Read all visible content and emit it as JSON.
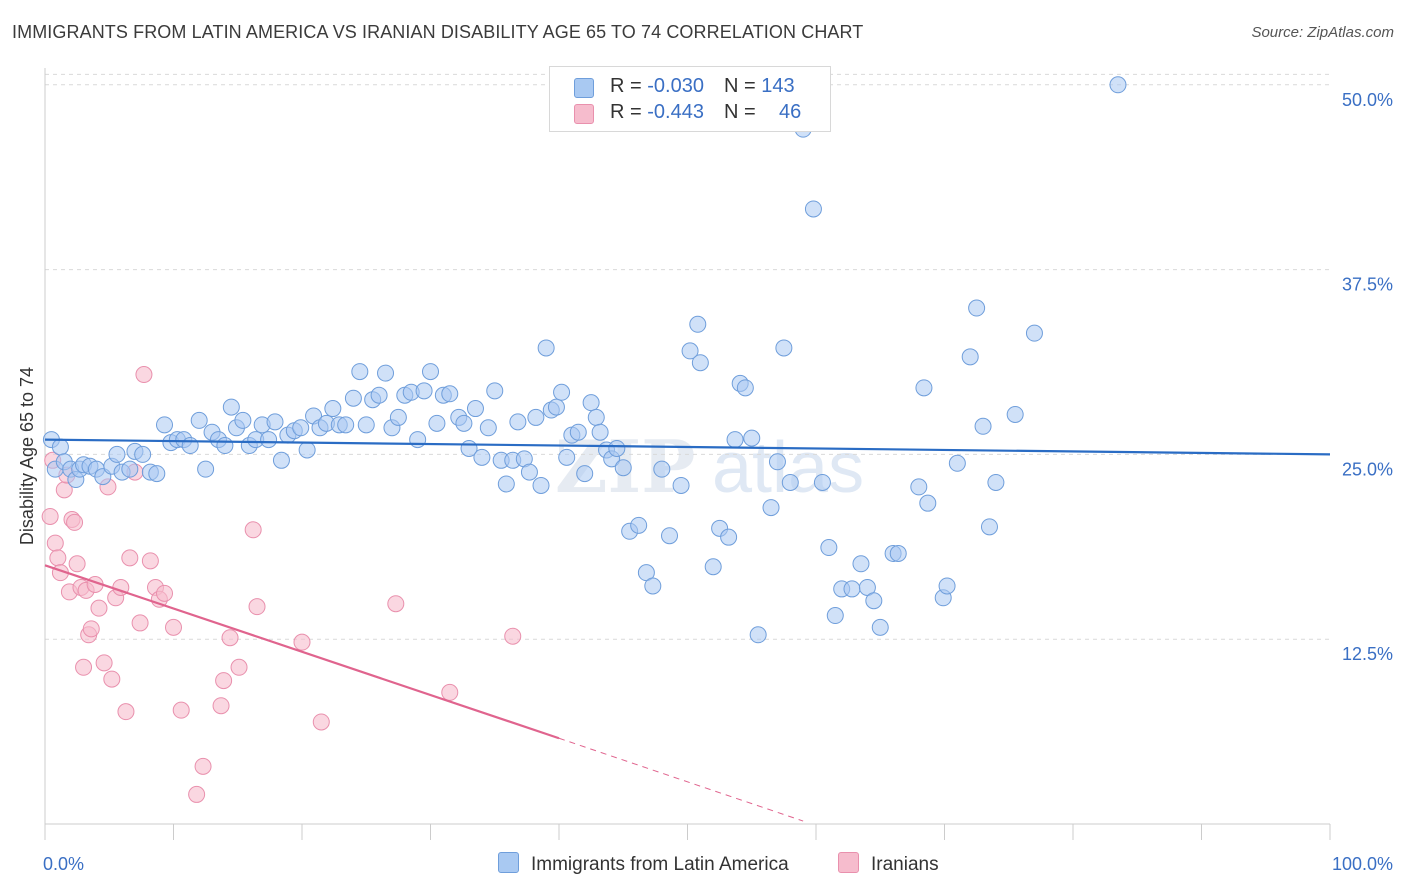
{
  "title": "IMMIGRANTS FROM LATIN AMERICA VS IRANIAN DISABILITY AGE 65 TO 74 CORRELATION CHART",
  "source": "Source: ZipAtlas.com",
  "legend": {
    "row1": {
      "r_label": "R = ",
      "r_value": "-0.030",
      "n_label": "N = ",
      "n_value": "143"
    },
    "row2": {
      "r_label": "R = ",
      "r_value": "-0.443",
      "n_label": "N = ",
      "n_value": "46"
    }
  },
  "colors": {
    "blue_fill": "#a9c9f2",
    "blue_stroke": "#6f9edb",
    "blue_line": "#2a6cc4",
    "pink_fill": "#f6bccd",
    "pink_stroke": "#e990ad",
    "pink_line": "#e0648e",
    "axis_text": "#3a6fc4",
    "grid": "#d9d9d9"
  },
  "chart_data": {
    "type": "scatter",
    "title": "IMMIGRANTS FROM LATIN AMERICA VS IRANIAN DISABILITY AGE 65 TO 74 CORRELATION CHART",
    "xlabel": "",
    "ylabel": "Disability Age 65 to 74",
    "xlim": [
      0,
      100
    ],
    "ylim": [
      0,
      51
    ],
    "x_tick_labels": [
      "0.0%",
      "100.0%"
    ],
    "y_ticks": [
      12.5,
      25.0,
      37.5,
      50.0
    ],
    "y_tick_labels": [
      "12.5%",
      "25.0%",
      "37.5%",
      "50.0%"
    ],
    "grid": true,
    "legend_position": "top-center",
    "series": [
      {
        "name": "Immigrants from Latin America",
        "color": "#a9c9f2",
        "trend": {
          "x": [
            0,
            100
          ],
          "y": [
            26.0,
            25.0
          ]
        },
        "points": [
          [
            0.5,
            26.0
          ],
          [
            0.8,
            24.0
          ],
          [
            1.2,
            25.5
          ],
          [
            1.5,
            24.5
          ],
          [
            2.0,
            24.0
          ],
          [
            2.4,
            23.3
          ],
          [
            2.7,
            24.0
          ],
          [
            3.0,
            24.3
          ],
          [
            3.5,
            24.2
          ],
          [
            4.0,
            24.0
          ],
          [
            4.5,
            23.5
          ],
          [
            5.2,
            24.2
          ],
          [
            5.6,
            25.0
          ],
          [
            6.0,
            23.8
          ],
          [
            6.6,
            24.0
          ],
          [
            7.0,
            25.2
          ],
          [
            7.6,
            25.0
          ],
          [
            8.2,
            23.8
          ],
          [
            8.7,
            23.7
          ],
          [
            9.3,
            27.0
          ],
          [
            9.8,
            25.8
          ],
          [
            10.3,
            26.0
          ],
          [
            10.8,
            26.0
          ],
          [
            11.3,
            25.6
          ],
          [
            12.0,
            27.3
          ],
          [
            12.5,
            24.0
          ],
          [
            13.0,
            26.5
          ],
          [
            13.5,
            26.0
          ],
          [
            14.0,
            25.6
          ],
          [
            14.5,
            28.2
          ],
          [
            14.9,
            26.8
          ],
          [
            15.4,
            27.3
          ],
          [
            15.9,
            25.6
          ],
          [
            16.4,
            26.0
          ],
          [
            16.9,
            27.0
          ],
          [
            17.4,
            26.0
          ],
          [
            17.9,
            27.2
          ],
          [
            18.4,
            24.6
          ],
          [
            18.9,
            26.3
          ],
          [
            19.4,
            26.6
          ],
          [
            19.9,
            26.8
          ],
          [
            20.4,
            25.3
          ],
          [
            20.9,
            27.6
          ],
          [
            21.4,
            26.8
          ],
          [
            21.9,
            27.1
          ],
          [
            22.4,
            28.1
          ],
          [
            22.9,
            27.0
          ],
          [
            23.4,
            27.0
          ],
          [
            24.0,
            28.8
          ],
          [
            24.5,
            30.6
          ],
          [
            25.0,
            27.0
          ],
          [
            25.5,
            28.7
          ],
          [
            26.0,
            29.0
          ],
          [
            26.5,
            30.5
          ],
          [
            27.0,
            26.8
          ],
          [
            27.5,
            27.5
          ],
          [
            28.0,
            29.0
          ],
          [
            28.5,
            29.2
          ],
          [
            29.0,
            26.0
          ],
          [
            29.5,
            29.3
          ],
          [
            30.0,
            30.6
          ],
          [
            30.5,
            27.1
          ],
          [
            31.0,
            29.0
          ],
          [
            31.5,
            29.1
          ],
          [
            32.2,
            27.5
          ],
          [
            32.6,
            27.1
          ],
          [
            33.0,
            25.4
          ],
          [
            33.5,
            28.1
          ],
          [
            34.0,
            24.8
          ],
          [
            34.5,
            26.8
          ],
          [
            35.0,
            29.3
          ],
          [
            35.5,
            24.6
          ],
          [
            35.9,
            23.0
          ],
          [
            36.4,
            24.6
          ],
          [
            36.8,
            27.2
          ],
          [
            37.3,
            24.7
          ],
          [
            37.7,
            23.8
          ],
          [
            38.2,
            27.5
          ],
          [
            38.6,
            22.9
          ],
          [
            39.0,
            32.2
          ],
          [
            39.4,
            28.0
          ],
          [
            39.8,
            28.2
          ],
          [
            40.2,
            29.2
          ],
          [
            40.6,
            24.8
          ],
          [
            41.0,
            26.3
          ],
          [
            41.5,
            26.5
          ],
          [
            42.0,
            23.7
          ],
          [
            42.5,
            28.5
          ],
          [
            42.9,
            27.5
          ],
          [
            43.2,
            26.5
          ],
          [
            43.7,
            25.3
          ],
          [
            44.1,
            24.7
          ],
          [
            44.5,
            25.4
          ],
          [
            45.0,
            24.1
          ],
          [
            45.5,
            19.8
          ],
          [
            46.2,
            20.2
          ],
          [
            46.8,
            17.0
          ],
          [
            47.3,
            16.1
          ],
          [
            48.0,
            24.0
          ],
          [
            48.6,
            19.5
          ],
          [
            49.5,
            22.9
          ],
          [
            50.8,
            33.8
          ],
          [
            50.2,
            32.0
          ],
          [
            51.0,
            31.2
          ],
          [
            52.0,
            17.4
          ],
          [
            52.5,
            20.0
          ],
          [
            53.2,
            19.4
          ],
          [
            53.7,
            26.0
          ],
          [
            54.1,
            29.8
          ],
          [
            54.5,
            29.5
          ],
          [
            55.0,
            26.1
          ],
          [
            55.5,
            12.8
          ],
          [
            56.5,
            21.4
          ],
          [
            57.0,
            24.5
          ],
          [
            57.5,
            32.2
          ],
          [
            58.0,
            23.1
          ],
          [
            59.0,
            47.0
          ],
          [
            59.5,
            49.4
          ],
          [
            59.8,
            41.6
          ],
          [
            60.5,
            23.1
          ],
          [
            61.0,
            18.7
          ],
          [
            61.5,
            14.1
          ],
          [
            62.0,
            15.9
          ],
          [
            62.8,
            15.9
          ],
          [
            63.5,
            17.6
          ],
          [
            64.0,
            16.0
          ],
          [
            64.5,
            15.1
          ],
          [
            65.0,
            13.3
          ],
          [
            66.0,
            18.3
          ],
          [
            66.4,
            18.3
          ],
          [
            68.0,
            22.8
          ],
          [
            68.4,
            29.5
          ],
          [
            68.7,
            21.7
          ],
          [
            69.9,
            15.3
          ],
          [
            70.2,
            16.1
          ],
          [
            71.0,
            24.4
          ],
          [
            72.0,
            31.6
          ],
          [
            72.5,
            34.9
          ],
          [
            73.0,
            26.9
          ],
          [
            73.5,
            20.1
          ],
          [
            74.0,
            23.1
          ],
          [
            75.5,
            27.7
          ],
          [
            77.0,
            33.2
          ],
          [
            83.5,
            50.0
          ]
        ]
      },
      {
        "name": "Iranians",
        "color": "#f6bccd",
        "trend": {
          "x": [
            0,
            40
          ],
          "y": [
            17.5,
            5.8
          ]
        },
        "trend_dashed": {
          "x": [
            40,
            59
          ],
          "y": [
            5.8,
            0.2
          ]
        },
        "points": [
          [
            0.4,
            20.8
          ],
          [
            0.6,
            24.6
          ],
          [
            0.8,
            19.0
          ],
          [
            1.0,
            18.0
          ],
          [
            1.2,
            17.0
          ],
          [
            1.5,
            22.6
          ],
          [
            1.7,
            23.6
          ],
          [
            1.9,
            15.7
          ],
          [
            2.1,
            20.6
          ],
          [
            2.3,
            20.4
          ],
          [
            2.5,
            17.6
          ],
          [
            2.8,
            16.0
          ],
          [
            3.0,
            10.6
          ],
          [
            3.2,
            15.8
          ],
          [
            3.4,
            12.8
          ],
          [
            3.6,
            13.2
          ],
          [
            3.9,
            16.2
          ],
          [
            4.2,
            14.6
          ],
          [
            4.6,
            10.9
          ],
          [
            4.9,
            22.8
          ],
          [
            5.2,
            9.8
          ],
          [
            5.5,
            15.3
          ],
          [
            5.9,
            16.0
          ],
          [
            6.3,
            7.6
          ],
          [
            6.6,
            18.0
          ],
          [
            7.0,
            23.8
          ],
          [
            7.4,
            13.6
          ],
          [
            7.7,
            30.4
          ],
          [
            8.2,
            17.8
          ],
          [
            8.6,
            16.0
          ],
          [
            8.9,
            15.2
          ],
          [
            9.3,
            15.6
          ],
          [
            10.0,
            13.3
          ],
          [
            10.6,
            7.7
          ],
          [
            11.8,
            2.0
          ],
          [
            12.3,
            3.9
          ],
          [
            13.7,
            8.0
          ],
          [
            13.9,
            9.7
          ],
          [
            14.4,
            12.6
          ],
          [
            15.1,
            10.6
          ],
          [
            16.2,
            19.9
          ],
          [
            16.5,
            14.7
          ],
          [
            20.0,
            12.3
          ],
          [
            21.5,
            6.9
          ],
          [
            27.3,
            14.9
          ],
          [
            31.5,
            8.9
          ],
          [
            36.4,
            12.7
          ]
        ]
      }
    ]
  },
  "bottom_legend": [
    {
      "label": "Immigrants from Latin America"
    },
    {
      "label": "Iranians"
    }
  ],
  "watermark": "ZIPatlas"
}
